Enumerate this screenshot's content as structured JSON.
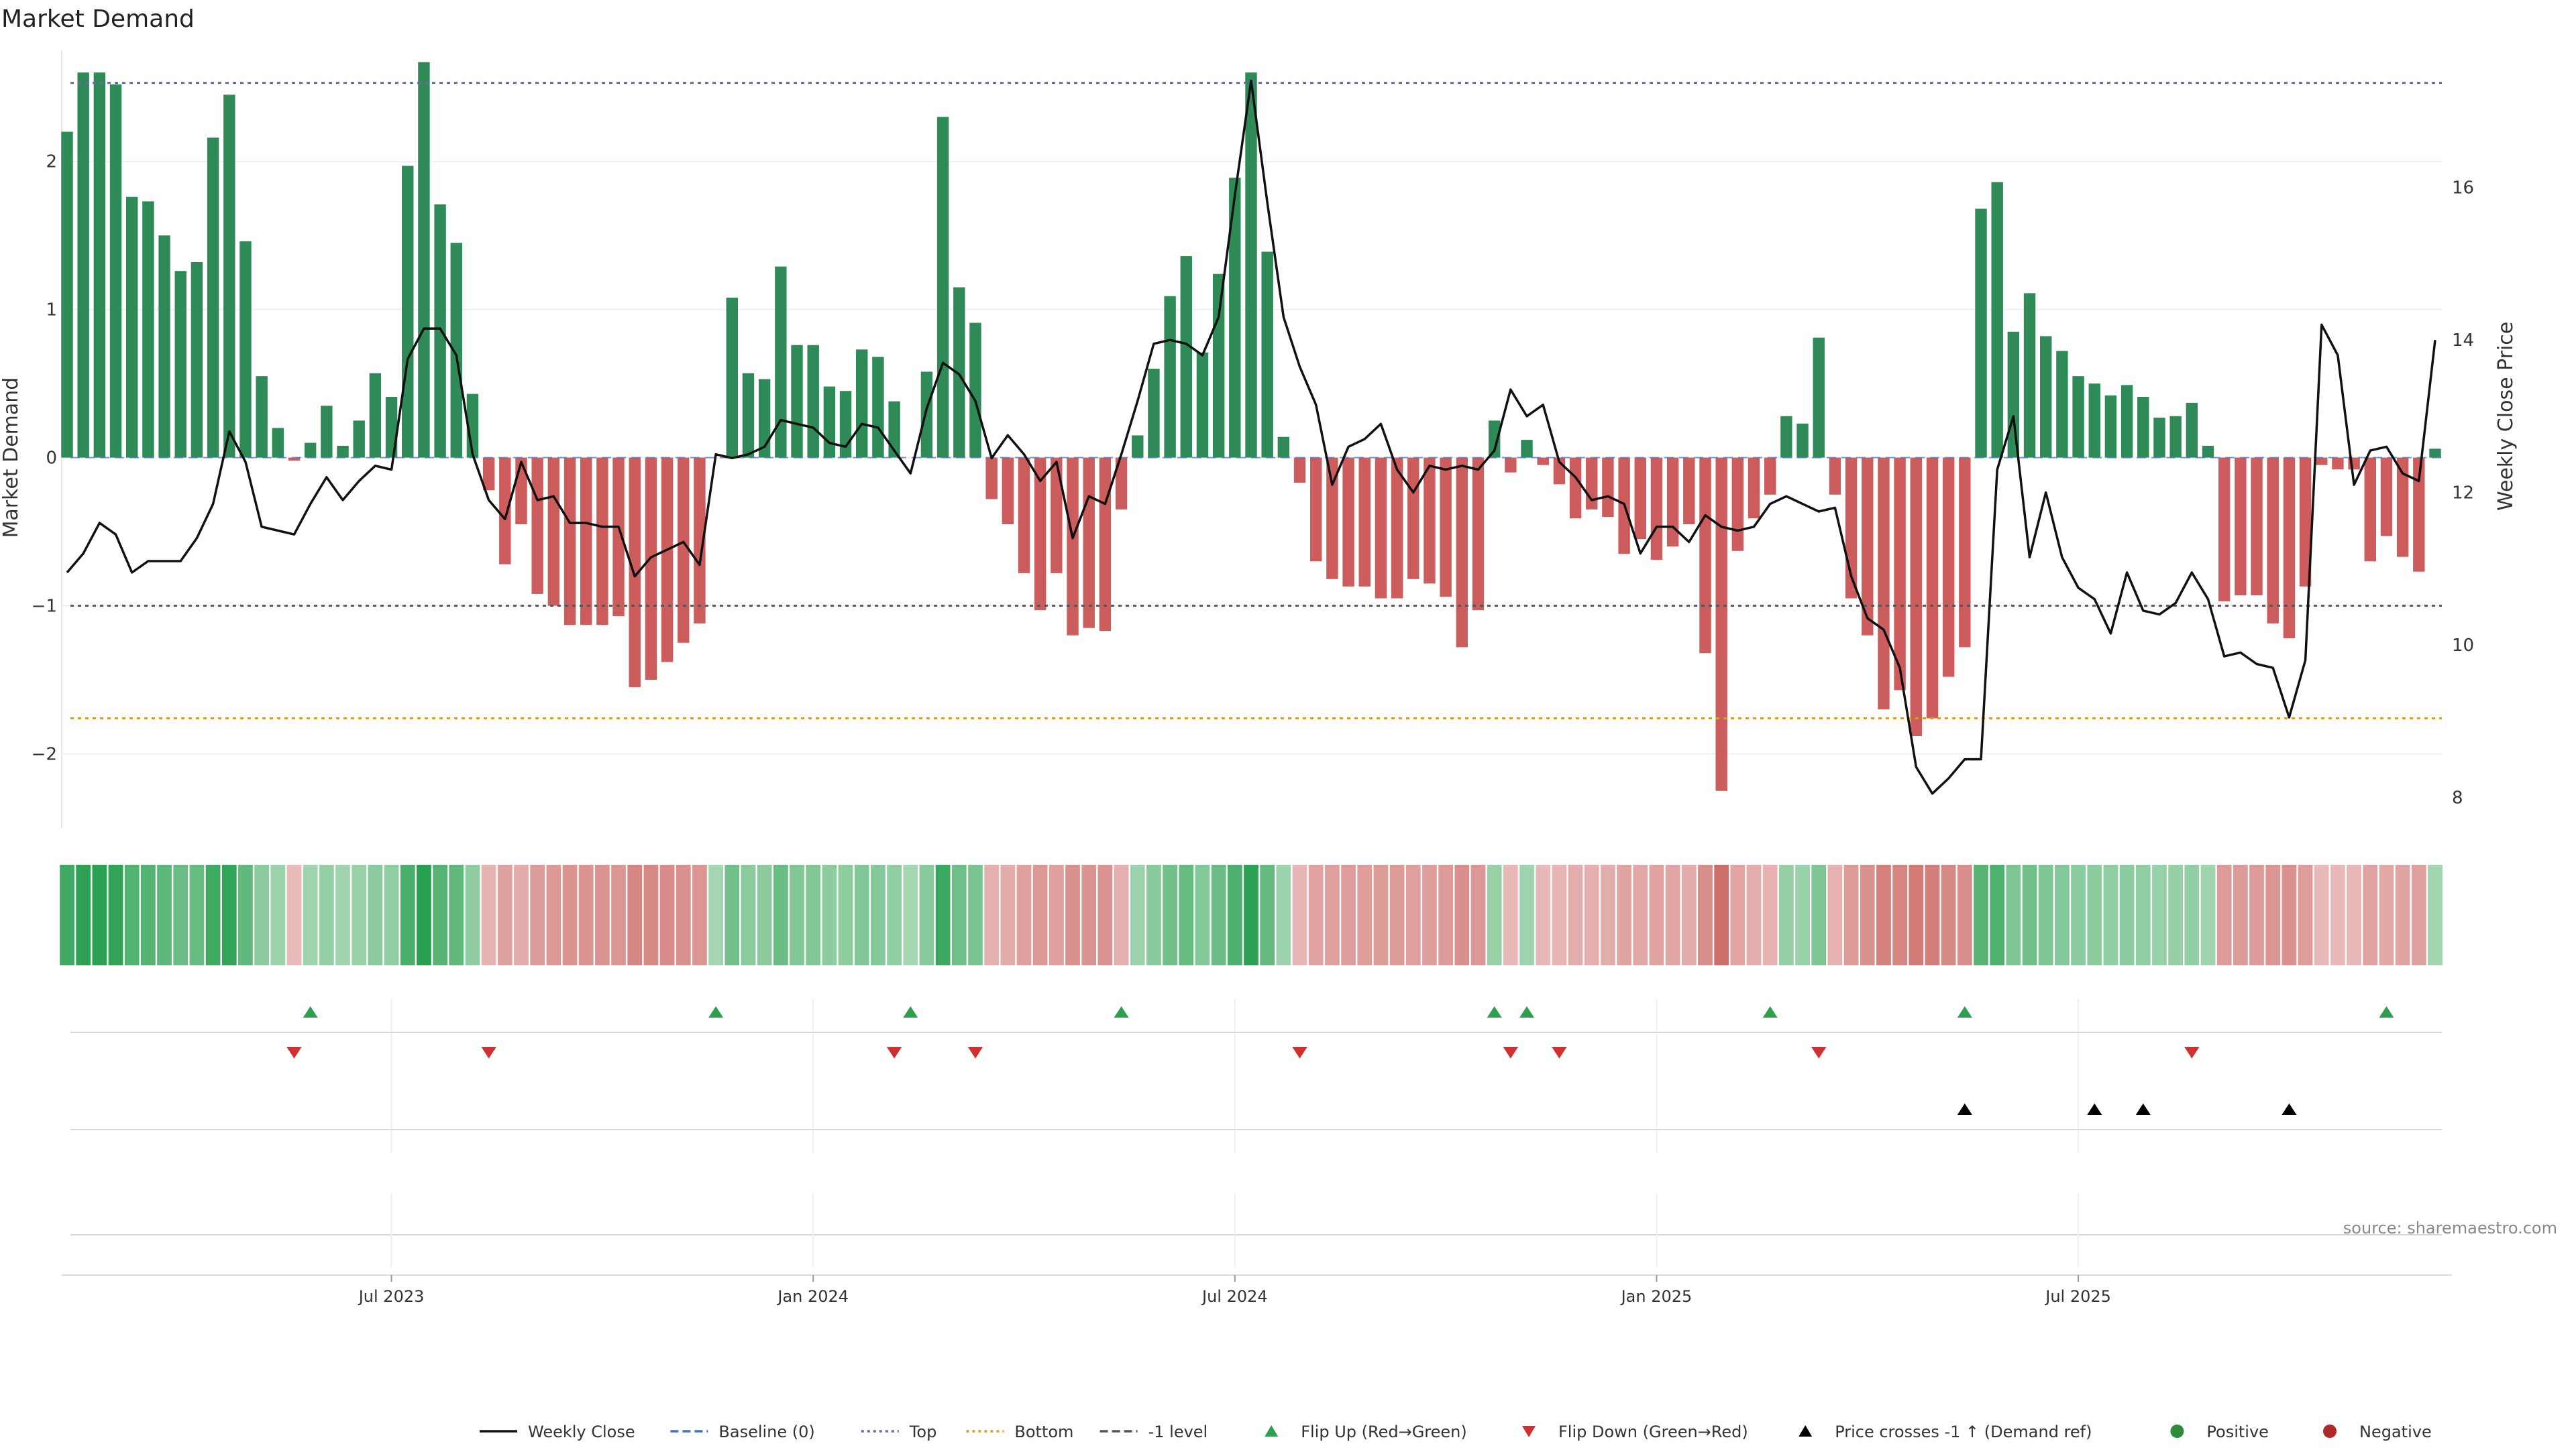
{
  "chart_data": {
    "title": "Market Demand",
    "type": "bar+line",
    "ylabel_left": "Market Demand",
    "ylabel_right": "Weekly Close Price",
    "ylim_left": [
      -2.5,
      2.75
    ],
    "ylim_right": [
      7.6,
      17.8
    ],
    "yticks_left": [
      -2,
      -1,
      0,
      1,
      2
    ],
    "ytick_labels_left": [
      "−2",
      "−1",
      "0",
      "1",
      "2"
    ],
    "yticks_right": [
      8,
      10,
      12,
      14,
      16
    ],
    "ytick_labels_right": [
      "8",
      "10",
      "12",
      "14",
      "16"
    ],
    "x_start_index": 0,
    "x_labels": [
      {
        "index": 20,
        "label": "Jul 2023"
      },
      {
        "index": 46,
        "label": "Jan 2024"
      },
      {
        "index": 72,
        "label": "Jul 2024"
      },
      {
        "index": 98,
        "label": "Jan 2025"
      },
      {
        "index": 124,
        "label": "Jul 2025"
      }
    ],
    "reference_lines": {
      "top": 2.53,
      "bottom": -1.76,
      "minus1": -1.0,
      "baseline": 0
    },
    "demand": [
      2.2,
      2.6,
      2.6,
      2.52,
      1.76,
      1.73,
      1.5,
      1.26,
      1.32,
      2.16,
      2.45,
      1.46,
      0.55,
      0.2,
      -0.02,
      0.1,
      0.35,
      0.08,
      0.25,
      0.57,
      0.41,
      1.97,
      2.67,
      1.71,
      1.45,
      0.43,
      -0.22,
      -0.72,
      -0.45,
      -0.92,
      -1.0,
      -1.13,
      -1.13,
      -1.13,
      -1.07,
      -1.55,
      -1.5,
      -1.38,
      -1.25,
      -1.12,
      0.0,
      1.08,
      0.57,
      0.53,
      1.29,
      0.76,
      0.76,
      0.48,
      0.45,
      0.73,
      0.68,
      0.38,
      0.0,
      0.58,
      2.3,
      1.15,
      0.91,
      -0.28,
      -0.45,
      -0.78,
      -1.03,
      -0.78,
      -1.2,
      -1.15,
      -1.17,
      -0.35,
      0.15,
      0.6,
      1.09,
      1.36,
      0.71,
      1.24,
      1.89,
      2.6,
      1.39,
      0.14,
      -0.17,
      -0.7,
      -0.82,
      -0.87,
      -0.87,
      -0.95,
      -0.95,
      -0.82,
      -0.85,
      -0.94,
      -1.28,
      -1.03,
      0.25,
      -0.1,
      0.12,
      -0.05,
      -0.18,
      -0.41,
      -0.35,
      -0.4,
      -0.65,
      -0.55,
      -0.69,
      -0.6,
      -0.45,
      -1.32,
      -2.25,
      -0.63,
      -0.41,
      -0.25,
      0.28,
      0.23,
      0.81,
      -0.25,
      -0.95,
      -1.2,
      -1.7,
      -1.57,
      -1.88,
      -1.76,
      -1.48,
      -1.28,
      1.68,
      1.86,
      0.85,
      1.11,
      0.82,
      0.72,
      0.55,
      0.5,
      0.42,
      0.49,
      0.41,
      0.27,
      0.28,
      0.37,
      0.08,
      -0.97,
      -0.93,
      -0.93,
      -1.12,
      -1.22,
      -0.87,
      -0.05,
      -0.08,
      -0.08,
      -0.7,
      -0.53,
      -0.67,
      -0.77,
      0.06
    ],
    "weekly_close": [
      10.95,
      11.2,
      11.6,
      11.45,
      10.95,
      11.1,
      11.1,
      11.1,
      11.4,
      11.85,
      12.8,
      12.4,
      11.55,
      11.5,
      11.45,
      11.85,
      12.2,
      11.9,
      12.15,
      12.35,
      12.3,
      13.75,
      14.15,
      14.15,
      13.8,
      12.5,
      11.9,
      11.65,
      12.4,
      11.9,
      11.95,
      11.6,
      11.6,
      11.55,
      11.55,
      10.9,
      11.15,
      11.25,
      11.35,
      11.05,
      12.5,
      12.45,
      12.5,
      12.6,
      12.95,
      12.9,
      12.85,
      12.65,
      12.6,
      12.9,
      12.85,
      12.55,
      12.25,
      13.1,
      13.7,
      13.55,
      13.2,
      12.45,
      12.75,
      12.5,
      12.15,
      12.4,
      11.4,
      11.95,
      11.85,
      12.5,
      13.2,
      13.95,
      14.0,
      13.95,
      13.8,
      14.3,
      15.9,
      17.4,
      15.8,
      14.3,
      13.65,
      13.15,
      12.1,
      12.6,
      12.7,
      12.9,
      12.3,
      12.0,
      12.35,
      12.3,
      12.35,
      12.3,
      12.55,
      13.35,
      13.0,
      13.15,
      12.4,
      12.2,
      11.9,
      11.95,
      11.85,
      11.2,
      11.55,
      11.55,
      11.35,
      11.7,
      11.55,
      11.5,
      11.55,
      11.85,
      11.95,
      11.85,
      11.75,
      11.8,
      10.9,
      10.35,
      10.2,
      9.7,
      8.4,
      8.05,
      8.25,
      8.5,
      8.5,
      12.3,
      13.0,
      11.15,
      12.0,
      11.15,
      10.75,
      10.6,
      10.15,
      10.95,
      10.45,
      10.4,
      10.55,
      10.95,
      10.6,
      9.85,
      9.9,
      9.75,
      9.7,
      9.05,
      9.8,
      14.2,
      13.8,
      12.1,
      12.55,
      12.6,
      12.25,
      12.15,
      14.0
    ],
    "flip_up_indices": [
      15,
      40,
      52,
      65,
      88,
      90,
      105,
      117,
      143
    ],
    "flip_down_indices": [
      14,
      26,
      51,
      56,
      76,
      89,
      92,
      108,
      131
    ],
    "price_cross_indices": [
      117,
      125,
      128,
      137
    ],
    "legend": [
      {
        "label": "Weekly Close",
        "style": "line-solid",
        "color": "#111111"
      },
      {
        "label": "Baseline (0)",
        "style": "line-dash",
        "color": "#4472c4"
      },
      {
        "label": "Top",
        "style": "line-dot",
        "color": "#6a6a9a"
      },
      {
        "label": "Bottom",
        "style": "line-dot",
        "color": "#d4a020"
      },
      {
        "label": "-1 level",
        "style": "line-dash",
        "color": "#555555"
      },
      {
        "label": "Flip Up (Red→Green)",
        "style": "triangle-up",
        "color": "#2e9e4f"
      },
      {
        "label": "Flip Down (Green→Red)",
        "style": "triangle-down",
        "color": "#d03030"
      },
      {
        "label": "Price crosses -1 ↑ (Demand ref)",
        "style": "triangle-up",
        "color": "#000000"
      },
      {
        "label": "Positive",
        "style": "dot",
        "color": "#2e8b3a"
      },
      {
        "label": "Negative",
        "style": "dot",
        "color": "#b02828"
      }
    ],
    "source": "source: sharemaestro.com"
  },
  "colors": {
    "positive": "#2e8b57",
    "negative": "#cd5c5c",
    "price": "#111111",
    "top_line": "#6a6a9a",
    "bottom_line": "#d4a020",
    "minus1_line": "#555555",
    "flip_up": "#2e9e4f",
    "flip_down": "#d03030",
    "price_cross": "#000000"
  }
}
